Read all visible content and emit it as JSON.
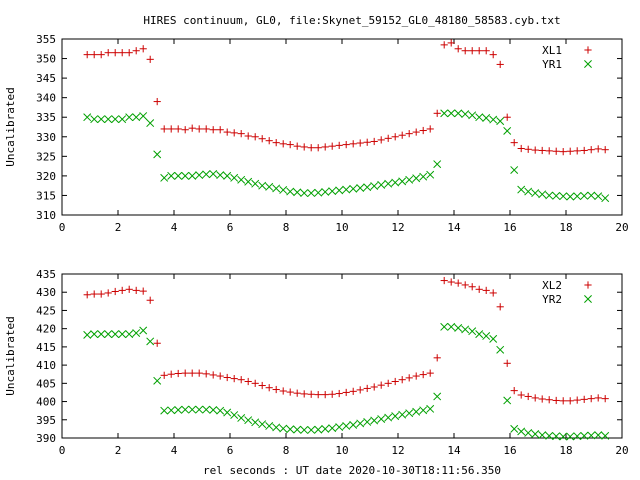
{
  "title": "HIRES continuum, GL0, file:Skynet_59152_GL0_48180_58583.cyb.txt",
  "xlabel": "rel seconds : UT date 2020-10-30T18:11:56.350",
  "colors": {
    "plus": "#cc0000",
    "cross": "#00a000",
    "axis": "#000000"
  },
  "chart_data": [
    {
      "type": "scatter",
      "ylabel": "Uncalibrated",
      "xlim": [
        0,
        20
      ],
      "ylim": [
        310,
        355
      ],
      "xticks": [
        "0",
        "2",
        "4",
        "6",
        "8",
        "10",
        "12",
        "14",
        "16",
        "18",
        "20"
      ],
      "yticks": [
        "310",
        "315",
        "320",
        "325",
        "330",
        "335",
        "340",
        "345",
        "350",
        "355"
      ],
      "legend_position": "top-right",
      "series": [
        {
          "name": "XL1",
          "marker": "plus",
          "x": [
            0.9,
            1.15,
            1.4,
            1.65,
            1.9,
            2.15,
            2.4,
            2.65,
            2.9,
            3.15,
            3.4,
            3.65,
            3.9,
            4.15,
            4.4,
            4.65,
            4.9,
            5.15,
            5.4,
            5.65,
            5.9,
            6.15,
            6.4,
            6.65,
            6.9,
            7.15,
            7.4,
            7.65,
            7.9,
            8.15,
            8.4,
            8.65,
            8.9,
            9.15,
            9.4,
            9.65,
            9.9,
            10.15,
            10.4,
            10.65,
            10.9,
            11.15,
            11.4,
            11.65,
            11.9,
            12.15,
            12.4,
            12.65,
            12.9,
            13.15,
            13.4,
            13.65,
            13.9,
            14.15,
            14.4,
            14.65,
            14.9,
            15.15,
            15.4,
            15.65,
            15.9,
            16.15,
            16.4,
            16.65,
            16.9,
            17.15,
            17.4,
            17.65,
            17.9,
            18.15,
            18.4,
            18.65,
            18.9,
            19.15,
            19.4
          ],
          "y": [
            351,
            351,
            351,
            351.5,
            351.5,
            351.5,
            351.5,
            352,
            352.5,
            349.8,
            339,
            332,
            332,
            332,
            331.8,
            332.2,
            332,
            332,
            331.8,
            331.8,
            331.2,
            331,
            330.8,
            330.2,
            330,
            329.5,
            329,
            328.5,
            328.2,
            328,
            327.6,
            327.4,
            327.2,
            327.2,
            327.4,
            327.6,
            327.8,
            328,
            328.2,
            328.4,
            328.6,
            328.8,
            329.2,
            329.6,
            330,
            330.4,
            330.8,
            331.2,
            331.6,
            332,
            336,
            353.5,
            354,
            352.5,
            352,
            352,
            352,
            352,
            351,
            348.5,
            335,
            328.5,
            327,
            326.8,
            326.6,
            326.5,
            326.4,
            326.3,
            326.2,
            326.3,
            326.4,
            326.5,
            326.7,
            326.9,
            326.7
          ]
        },
        {
          "name": "YR1",
          "marker": "cross",
          "x": [
            0.9,
            1.15,
            1.4,
            1.65,
            1.9,
            2.15,
            2.4,
            2.65,
            2.9,
            3.15,
            3.4,
            3.65,
            3.9,
            4.15,
            4.4,
            4.65,
            4.9,
            5.15,
            5.4,
            5.65,
            5.9,
            6.15,
            6.4,
            6.65,
            6.9,
            7.15,
            7.4,
            7.65,
            7.9,
            8.15,
            8.4,
            8.65,
            8.9,
            9.15,
            9.4,
            9.65,
            9.9,
            10.15,
            10.4,
            10.65,
            10.9,
            11.15,
            11.4,
            11.65,
            11.9,
            12.15,
            12.4,
            12.65,
            12.9,
            13.15,
            13.4,
            13.65,
            13.9,
            14.15,
            14.4,
            14.65,
            14.9,
            15.15,
            15.4,
            15.65,
            15.9,
            16.15,
            16.4,
            16.65,
            16.9,
            17.15,
            17.4,
            17.65,
            17.9,
            18.15,
            18.4,
            18.65,
            18.9,
            19.15,
            19.4
          ],
          "y": [
            335,
            334.5,
            334.5,
            334.5,
            334.5,
            334.5,
            335,
            335,
            335.3,
            333.5,
            325.5,
            319.5,
            320,
            320,
            320,
            320,
            320.2,
            320.4,
            320.5,
            320.2,
            320,
            319.5,
            319,
            318.5,
            318,
            317.5,
            317.2,
            316.8,
            316.4,
            316,
            315.8,
            315.6,
            315.6,
            315.7,
            315.9,
            316.1,
            316.3,
            316.5,
            316.7,
            316.9,
            317.1,
            317.4,
            317.7,
            318,
            318.3,
            318.6,
            319,
            319.4,
            319.8,
            320.3,
            323,
            336,
            336,
            336,
            335.8,
            335.5,
            335,
            334.8,
            334.4,
            334,
            331.5,
            321.5,
            316.5,
            316,
            315.6,
            315.3,
            315,
            314.9,
            314.8,
            314.7,
            314.8,
            314.9,
            315,
            314.8,
            314.3
          ]
        }
      ]
    },
    {
      "type": "scatter",
      "ylabel": "Uncalibrated",
      "xlim": [
        0,
        20
      ],
      "ylim": [
        390,
        435
      ],
      "xticks": [
        "0",
        "2",
        "4",
        "6",
        "8",
        "10",
        "12",
        "14",
        "16",
        "18",
        "20"
      ],
      "yticks": [
        "390",
        "395",
        "400",
        "405",
        "410",
        "415",
        "420",
        "425",
        "430",
        "435"
      ],
      "legend_position": "top-right",
      "series": [
        {
          "name": "XL2",
          "marker": "plus",
          "x": [
            0.9,
            1.15,
            1.4,
            1.65,
            1.9,
            2.15,
            2.4,
            2.65,
            2.9,
            3.15,
            3.4,
            3.65,
            3.9,
            4.15,
            4.4,
            4.65,
            4.9,
            5.15,
            5.4,
            5.65,
            5.9,
            6.15,
            6.4,
            6.65,
            6.9,
            7.15,
            7.4,
            7.65,
            7.9,
            8.15,
            8.4,
            8.65,
            8.9,
            9.15,
            9.4,
            9.65,
            9.9,
            10.15,
            10.4,
            10.65,
            10.9,
            11.15,
            11.4,
            11.65,
            11.9,
            12.15,
            12.4,
            12.65,
            12.9,
            13.15,
            13.4,
            13.65,
            13.9,
            14.15,
            14.4,
            14.65,
            14.9,
            15.15,
            15.4,
            15.65,
            15.9,
            16.15,
            16.4,
            16.65,
            16.9,
            17.15,
            17.4,
            17.65,
            17.9,
            18.15,
            18.4,
            18.65,
            18.9,
            19.15,
            19.4
          ],
          "y": [
            429.3,
            429.5,
            429.5,
            429.8,
            430.2,
            430.5,
            430.8,
            430.5,
            430.3,
            427.8,
            416,
            407.2,
            407.5,
            407.7,
            407.8,
            407.8,
            407.8,
            407.6,
            407.3,
            407,
            406.6,
            406.3,
            406,
            405.5,
            405,
            404.4,
            403.8,
            403.3,
            402.9,
            402.6,
            402.3,
            402.1,
            402,
            401.9,
            401.9,
            402,
            402.2,
            402.5,
            402.8,
            403.2,
            403.6,
            404,
            404.5,
            405,
            405.5,
            406,
            406.5,
            407,
            407.4,
            407.8,
            412,
            433.2,
            432.8,
            432.5,
            432,
            431.5,
            430.8,
            430.5,
            429.8,
            426,
            410.5,
            403,
            401.8,
            401.4,
            401,
            400.7,
            400.5,
            400.3,
            400.2,
            400.2,
            400.4,
            400.6,
            400.8,
            401,
            400.8
          ]
        },
        {
          "name": "YR2",
          "marker": "cross",
          "x": [
            0.9,
            1.15,
            1.4,
            1.65,
            1.9,
            2.15,
            2.4,
            2.65,
            2.9,
            3.15,
            3.4,
            3.65,
            3.9,
            4.15,
            4.4,
            4.65,
            4.9,
            5.15,
            5.4,
            5.65,
            5.9,
            6.15,
            6.4,
            6.65,
            6.9,
            7.15,
            7.4,
            7.65,
            7.9,
            8.15,
            8.4,
            8.65,
            8.9,
            9.15,
            9.4,
            9.65,
            9.9,
            10.15,
            10.4,
            10.65,
            10.9,
            11.15,
            11.4,
            11.65,
            11.9,
            12.15,
            12.4,
            12.65,
            12.9,
            13.15,
            13.4,
            13.65,
            13.9,
            14.15,
            14.4,
            14.65,
            14.9,
            15.15,
            15.4,
            15.65,
            15.9,
            16.15,
            16.4,
            16.65,
            16.9,
            17.15,
            17.4,
            17.65,
            17.9,
            18.15,
            18.4,
            18.65,
            18.9,
            19.15,
            19.4
          ],
          "y": [
            418.3,
            418.5,
            418.5,
            418.5,
            418.5,
            418.5,
            418.5,
            418.8,
            419.5,
            416.5,
            405.7,
            397.5,
            397.6,
            397.7,
            397.8,
            397.8,
            397.8,
            397.8,
            397.7,
            397.5,
            397,
            396.3,
            395.5,
            394.9,
            394.3,
            393.8,
            393.3,
            392.9,
            392.6,
            392.4,
            392.3,
            392.2,
            392.2,
            392.3,
            392.5,
            392.7,
            393,
            393.3,
            393.6,
            394,
            394.4,
            394.8,
            395.2,
            395.6,
            396,
            396.4,
            396.8,
            397.2,
            397.6,
            398,
            401.4,
            420.5,
            420.5,
            420.2,
            419.8,
            419.3,
            418.5,
            418,
            417.2,
            414.2,
            400.3,
            392.5,
            391.8,
            391.4,
            391.1,
            390.8,
            390.6,
            390.5,
            390.4,
            390.4,
            390.5,
            390.6,
            390.7,
            390.8,
            390.6
          ]
        }
      ]
    }
  ]
}
